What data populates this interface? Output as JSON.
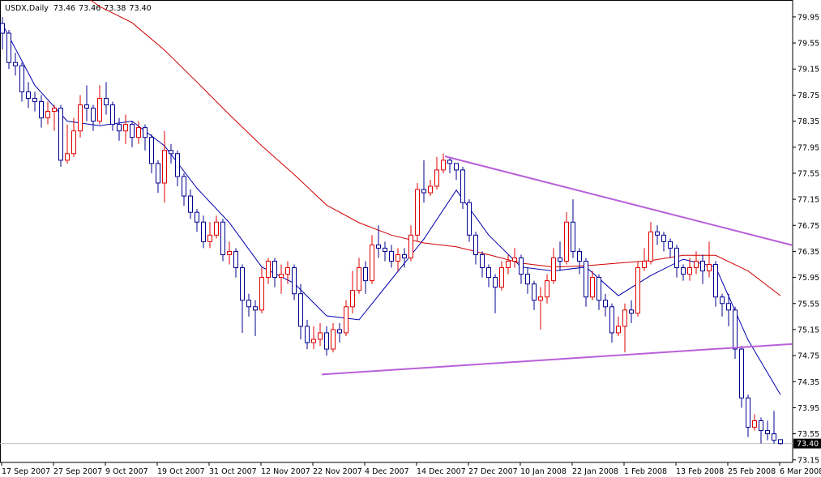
{
  "chart_data": {
    "type": "candlestick",
    "title": "USDX,Daily",
    "title_values": [
      "73.46",
      "73.46",
      "73.38",
      "73.40"
    ],
    "categories": [
      "17 Sep 2007",
      null,
      null,
      null,
      null,
      null,
      null,
      null,
      "27 Sep 2007",
      null,
      null,
      null,
      null,
      null,
      null,
      null,
      "9 Oct 2007",
      null,
      null,
      null,
      null,
      null,
      null,
      null,
      "19 Oct 2007",
      null,
      null,
      null,
      null,
      null,
      null,
      null,
      "31 Oct 2007",
      null,
      null,
      null,
      null,
      null,
      null,
      null,
      "12 Nov 2007",
      null,
      null,
      null,
      null,
      null,
      null,
      null,
      "22 Nov 2007",
      null,
      null,
      null,
      null,
      null,
      null,
      null,
      "4 Dec 2007",
      null,
      null,
      null,
      null,
      null,
      null,
      null,
      "14 Dec 2007",
      null,
      null,
      null,
      null,
      null,
      null,
      null,
      "27 Dec 2007",
      null,
      null,
      null,
      null,
      null,
      null,
      null,
      "10 Jan 2008",
      null,
      null,
      null,
      null,
      null,
      null,
      null,
      "22 Jan 2008",
      null,
      null,
      null,
      null,
      null,
      null,
      null,
      "1 Feb 2008",
      null,
      null,
      null,
      null,
      null,
      null,
      null,
      "13 Feb 2008",
      null,
      null,
      null,
      null,
      null,
      null,
      null,
      "25 Feb 2008",
      null,
      null,
      null,
      null,
      null,
      null,
      null,
      "6 Mar 2008"
    ],
    "open": [
      79.85,
      79.7,
      79.25,
      79.2,
      78.8,
      78.7,
      78.65,
      78.4,
      78.5,
      78.55,
      77.75,
      77.85,
      78.2,
      78.6,
      78.55,
      78.35,
      78.7,
      78.6,
      78.3,
      78.2,
      78.3,
      78.1,
      78.25,
      78.1,
      77.7,
      77.4,
      77.9,
      77.85,
      77.5,
      77.2,
      76.95,
      76.8,
      76.5,
      76.6,
      76.8,
      76.3,
      76.35,
      76.1,
      75.6,
      75.5,
      75.45,
      75.95,
      76.2,
      75.95,
      76.0,
      76.1,
      75.7,
      75.2,
      74.95,
      75.0,
      75.1,
      74.85,
      75.15,
      75.1,
      75.5,
      75.75,
      76.1,
      75.9,
      76.45,
      76.4,
      76.35,
      76.2,
      76.3,
      76.25,
      76.6,
      77.3,
      77.25,
      77.35,
      77.6,
      77.75,
      77.7,
      77.6,
      77.1,
      76.6,
      76.3,
      76.1,
      75.95,
      75.8,
      76.1,
      76.2,
      76.25,
      76.0,
      75.85,
      75.6,
      75.65,
      75.9,
      76.25,
      76.2,
      76.8,
      76.35,
      76.2,
      75.65,
      75.95,
      75.6,
      75.5,
      75.1,
      75.2,
      75.45,
      75.4,
      76.1,
      76.2,
      76.65,
      76.6,
      76.5,
      76.4,
      76.1,
      76.0,
      76.1,
      76.2,
      76.05,
      76.15,
      75.65,
      75.55,
      75.45,
      74.85,
      74.1,
      73.65,
      73.75,
      73.6,
      73.55,
      73.46
    ],
    "high": [
      79.95,
      79.75,
      79.4,
      79.25,
      78.95,
      78.8,
      78.75,
      78.65,
      78.6,
      78.6,
      78.3,
      78.4,
      78.75,
      78.9,
      78.6,
      78.9,
      78.95,
      78.65,
      78.4,
      78.45,
      78.35,
      78.35,
      78.3,
      78.15,
      77.75,
      78.2,
      78.0,
      77.9,
      77.55,
      77.3,
      77.0,
      76.9,
      76.8,
      76.9,
      76.85,
      76.5,
      76.4,
      76.15,
      75.7,
      75.6,
      76.1,
      76.25,
      76.25,
      76.15,
      76.2,
      76.15,
      75.85,
      75.3,
      75.2,
      75.25,
      75.2,
      75.25,
      75.25,
      75.6,
      76.05,
      76.25,
      76.2,
      76.6,
      76.75,
      76.5,
      76.45,
      76.4,
      76.4,
      76.75,
      77.4,
      77.75,
      77.45,
      77.8,
      77.85,
      77.8,
      77.7,
      77.65,
      77.15,
      76.65,
      76.35,
      76.15,
      76.0,
      76.2,
      76.3,
      76.4,
      76.3,
      76.1,
      75.9,
      75.8,
      76.0,
      76.4,
      76.5,
      76.95,
      77.15,
      76.4,
      76.25,
      76.05,
      76.0,
      75.7,
      75.55,
      75.35,
      75.55,
      75.6,
      76.2,
      76.4,
      76.8,
      76.75,
      76.65,
      76.55,
      76.45,
      76.15,
      76.25,
      76.35,
      76.3,
      76.5,
      76.2,
      75.7,
      75.7,
      75.5,
      74.9,
      74.15,
      73.85,
      73.8,
      73.75,
      73.9,
      73.46
    ],
    "low": [
      79.45,
      79.15,
      79.05,
      78.65,
      78.55,
      78.5,
      78.25,
      78.3,
      78.2,
      77.65,
      77.7,
      77.8,
      78.1,
      78.35,
      78.2,
      78.3,
      78.45,
      78.2,
      78.05,
      78.0,
      77.95,
      78.0,
      77.9,
      77.55,
      77.25,
      77.1,
      77.7,
      77.35,
      77.05,
      76.85,
      76.65,
      76.4,
      76.4,
      76.55,
      76.2,
      76.15,
      75.95,
      75.1,
      75.35,
      75.05,
      75.4,
      75.85,
      75.8,
      75.7,
      75.85,
      75.6,
      75.0,
      74.85,
      74.85,
      74.9,
      74.75,
      74.8,
      74.95,
      75.05,
      75.4,
      75.7,
      75.7,
      75.85,
      76.25,
      76.2,
      76.1,
      76.05,
      76.1,
      76.2,
      76.5,
      77.1,
      77.2,
      77.3,
      77.55,
      77.55,
      77.45,
      77.0,
      76.5,
      76.15,
      75.95,
      75.8,
      75.4,
      75.75,
      76.0,
      76.1,
      75.85,
      75.7,
      75.45,
      75.15,
      75.55,
      75.85,
      76.05,
      76.15,
      76.25,
      76.0,
      75.5,
      75.6,
      75.45,
      75.35,
      74.95,
      75.05,
      74.8,
      75.25,
      75.35,
      76.05,
      76.15,
      76.45,
      76.35,
      76.25,
      75.95,
      75.9,
      75.9,
      76.0,
      75.85,
      75.95,
      75.5,
      75.35,
      75.2,
      74.7,
      73.95,
      73.5,
      73.6,
      73.4,
      73.45,
      73.4,
      73.38
    ],
    "close": [
      79.7,
      79.25,
      79.2,
      78.8,
      78.7,
      78.65,
      78.4,
      78.5,
      78.55,
      77.75,
      77.85,
      78.2,
      78.6,
      78.55,
      78.35,
      78.7,
      78.6,
      78.3,
      78.2,
      78.3,
      78.1,
      78.25,
      78.1,
      77.7,
      77.4,
      77.9,
      77.85,
      77.5,
      77.2,
      76.95,
      76.8,
      76.5,
      76.6,
      76.8,
      76.3,
      76.35,
      76.1,
      75.6,
      75.5,
      75.45,
      75.95,
      76.2,
      75.95,
      76.0,
      76.1,
      75.7,
      75.2,
      74.95,
      75.0,
      75.1,
      74.85,
      75.15,
      75.1,
      75.5,
      75.75,
      76.1,
      75.9,
      76.45,
      76.4,
      76.35,
      76.2,
      76.3,
      76.25,
      76.6,
      77.3,
      77.25,
      77.35,
      77.6,
      77.75,
      77.7,
      77.6,
      77.1,
      76.6,
      76.3,
      76.1,
      75.95,
      75.8,
      76.1,
      76.2,
      76.25,
      76.0,
      75.85,
      75.6,
      75.65,
      75.9,
      76.25,
      76.2,
      76.8,
      76.35,
      76.2,
      75.65,
      75.95,
      75.6,
      75.5,
      75.1,
      75.2,
      75.45,
      75.4,
      76.1,
      76.2,
      76.65,
      76.6,
      76.5,
      76.4,
      76.1,
      76.0,
      76.1,
      76.2,
      76.05,
      76.15,
      75.65,
      75.55,
      75.45,
      74.85,
      74.1,
      73.65,
      73.75,
      73.6,
      73.55,
      73.45,
      73.4
    ],
    "up_color": "#e00000",
    "down_color": "#000090",
    "moving_averages": [
      {
        "color": "#0000b0",
        "x": [
          0,
          5,
          10,
          15,
          20,
          25,
          30,
          35,
          40,
          45,
          50,
          55,
          60,
          65,
          70,
          75,
          80,
          85,
          90,
          95,
          100,
          105,
          110,
          115,
          120
        ],
        "values": [
          79.84,
          78.9,
          78.35,
          78.28,
          78.35,
          77.97,
          77.32,
          76.79,
          76.11,
          75.86,
          75.36,
          75.3,
          75.92,
          76.54,
          77.29,
          76.6,
          76.11,
          76.05,
          76.11,
          75.67,
          75.98,
          76.23,
          76.11,
          74.99,
          74.15
        ]
      },
      {
        "color": "#d00000",
        "x": [
          13,
          15,
          20,
          25,
          30,
          35,
          40,
          45,
          50,
          55,
          60,
          65,
          70,
          75,
          80,
          85,
          90,
          95,
          100,
          105,
          110,
          115,
          120
        ],
        "values": [
          80.25,
          80.11,
          79.86,
          79.44,
          78.95,
          78.45,
          77.97,
          77.53,
          77.06,
          76.79,
          76.6,
          76.48,
          76.42,
          76.3,
          76.17,
          76.11,
          76.13,
          76.17,
          76.21,
          76.29,
          76.29,
          76.05,
          75.67
        ]
      }
    ],
    "trendlines": [
      {
        "color": "#b860d8",
        "x": [
          68.25,
          122
        ],
        "values": [
          77.81,
          76.44
        ]
      },
      {
        "color": "#b860d8",
        "x": [
          49.25,
          122
        ],
        "values": [
          74.46,
          74.93
        ]
      }
    ],
    "last_price": {
      "value": 73.4,
      "label": "73.40"
    },
    "ylim": [
      73.11,
      80.21
    ],
    "yticks": [
      79.95,
      79.55,
      79.15,
      78.75,
      78.35,
      77.95,
      77.55,
      77.15,
      76.75,
      76.35,
      75.95,
      75.55,
      75.15,
      74.75,
      74.35,
      73.95,
      73.55,
      73.15
    ]
  }
}
